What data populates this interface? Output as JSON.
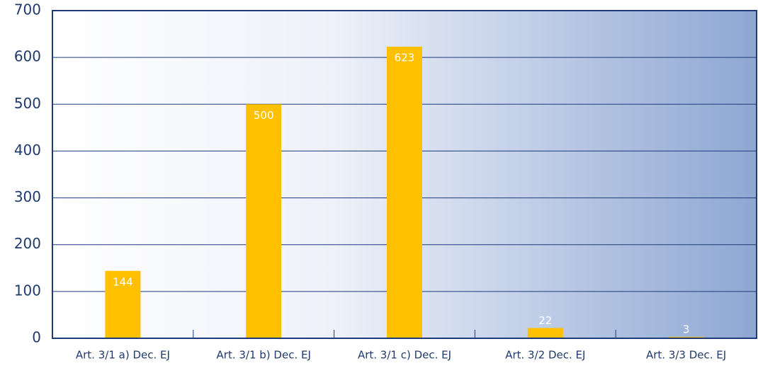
{
  "chart_data": {
    "type": "bar",
    "categories": [
      "Art. 3/1 a) Dec. EJ",
      "Art. 3/1 b) Dec. EJ",
      "Art. 3/1 c) Dec. EJ",
      "Art. 3/2 Dec. EJ",
      "Art. 3/3 Dec. EJ"
    ],
    "values": [
      144,
      500,
      623,
      22,
      3
    ],
    "color": "#ffc000",
    "ylim": [
      0,
      700
    ],
    "yticks": [
      0,
      100,
      200,
      300,
      400,
      500,
      600,
      700
    ],
    "grid": true
  }
}
